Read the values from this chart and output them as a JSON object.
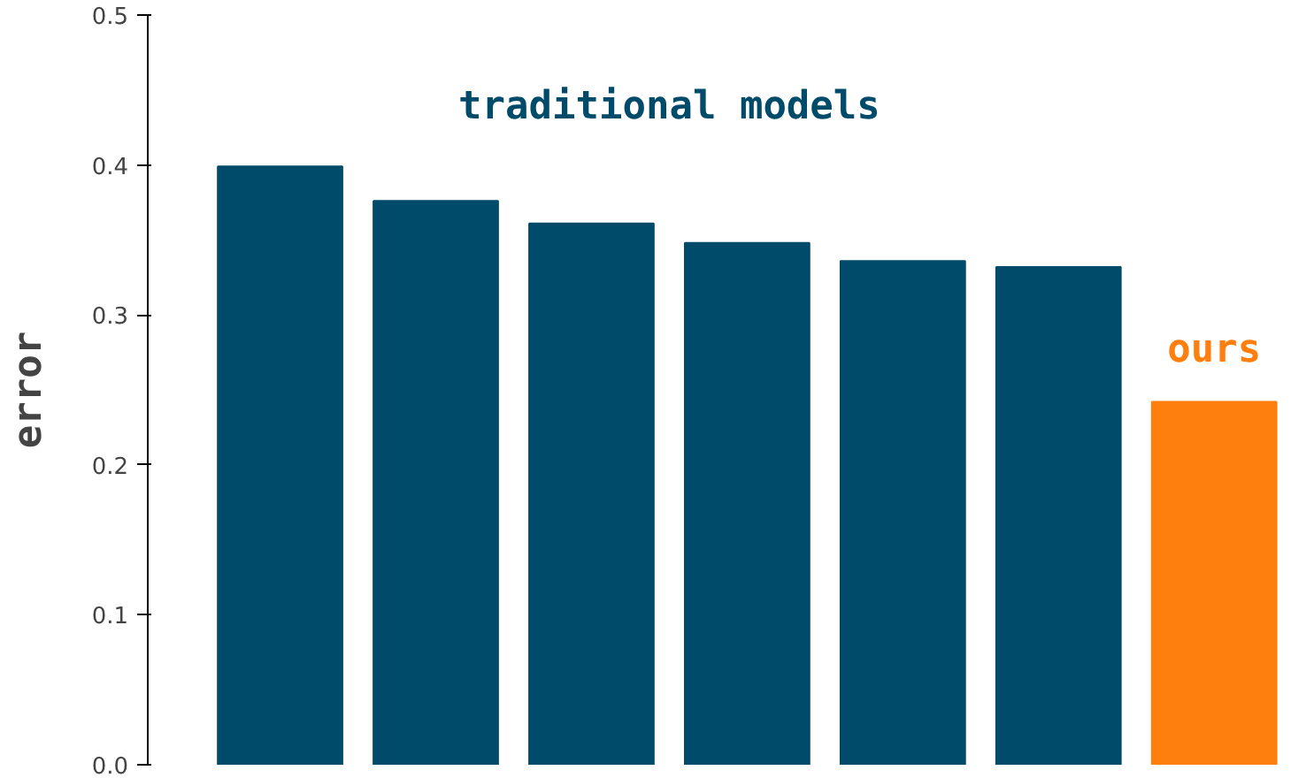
{
  "chart_data": {
    "type": "bar",
    "ylabel": "error",
    "categories": [
      null,
      null,
      null,
      null,
      null,
      null,
      null
    ],
    "values": [
      0.399,
      0.376,
      0.361,
      0.348,
      0.336,
      0.332,
      0.242
    ],
    "colors": [
      "#004a6a",
      "#004a6a",
      "#004a6a",
      "#004a6a",
      "#004a6a",
      "#004a6a",
      "#ff7f0e"
    ],
    "ylim": [
      0,
      0.5
    ],
    "yticks": [
      {
        "value": 0,
        "label": "0.0"
      },
      {
        "value": 0.1,
        "label": "0.1"
      },
      {
        "value": 0.2,
        "label": "0.2"
      },
      {
        "value": 0.3,
        "label": "0.3"
      },
      {
        "value": 0.4,
        "label": "0.4"
      },
      {
        "value": 0.5,
        "label": "0.5"
      }
    ],
    "annotations": [
      "traditional models",
      "ours"
    ],
    "grid": false,
    "tick_labels": "y"
  }
}
